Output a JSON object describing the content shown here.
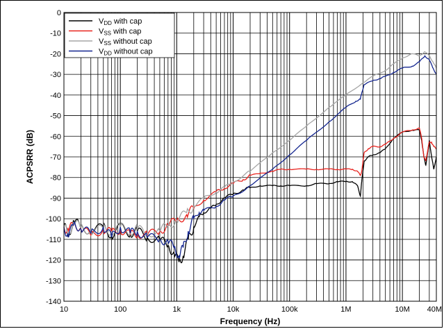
{
  "chart_data": {
    "type": "line",
    "title": "",
    "xlabel": "Frequency (Hz)",
    "ylabel": "ACPSRR (dB)",
    "xscale": "log",
    "xlim": [
      10,
      40000000
    ],
    "ylim": [
      -140,
      0
    ],
    "grid": true,
    "legend_position": "top-left",
    "x_ticks": [
      {
        "value": 10,
        "label": "10"
      },
      {
        "value": 100,
        "label": "100"
      },
      {
        "value": 1000,
        "label": "1k"
      },
      {
        "value": 10000,
        "label": "10k"
      },
      {
        "value": 100000,
        "label": "100k"
      },
      {
        "value": 1000000,
        "label": "1M"
      },
      {
        "value": 10000000,
        "label": "10M"
      },
      {
        "value": 40000000,
        "label": "40M"
      }
    ],
    "y_ticks": [
      0,
      -10,
      -20,
      -30,
      -40,
      -50,
      -60,
      -70,
      -80,
      -90,
      -100,
      -110,
      -120,
      -130,
      -140
    ],
    "series": [
      {
        "name_main": "V",
        "name_sub": "DD",
        "name_rest": " with cap",
        "color": "#000000",
        "points": [
          [
            10,
            -103
          ],
          [
            12,
            -108
          ],
          [
            15,
            -101
          ],
          [
            20,
            -104
          ],
          [
            30,
            -106
          ],
          [
            50,
            -104
          ],
          [
            70,
            -108
          ],
          [
            100,
            -104
          ],
          [
            150,
            -107
          ],
          [
            200,
            -106
          ],
          [
            300,
            -109
          ],
          [
            500,
            -110
          ],
          [
            700,
            -113
          ],
          [
            900,
            -117
          ],
          [
            1100,
            -121
          ],
          [
            1300,
            -118
          ],
          [
            1600,
            -110
          ],
          [
            2000,
            -104
          ],
          [
            2500,
            -99
          ],
          [
            3000,
            -97
          ],
          [
            4000,
            -95
          ],
          [
            5000,
            -93
          ],
          [
            7000,
            -90
          ],
          [
            10000,
            -88
          ],
          [
            15000,
            -86
          ],
          [
            20000,
            -85
          ],
          [
            30000,
            -84
          ],
          [
            50000,
            -84
          ],
          [
            70000,
            -84
          ],
          [
            100000,
            -84
          ],
          [
            200000,
            -84
          ],
          [
            300000,
            -83
          ],
          [
            500000,
            -83
          ],
          [
            700000,
            -82
          ],
          [
            1000000,
            -82
          ],
          [
            1300000,
            -82
          ],
          [
            1600000,
            -84
          ],
          [
            1800000,
            -89
          ],
          [
            1900000,
            -82
          ],
          [
            2100000,
            -72
          ],
          [
            2500000,
            -70
          ],
          [
            3000000,
            -69
          ],
          [
            4000000,
            -68
          ],
          [
            5000000,
            -66
          ],
          [
            7000000,
            -61
          ],
          [
            10000000,
            -58
          ],
          [
            15000000,
            -57
          ],
          [
            20000000,
            -57
          ],
          [
            22000000,
            -62
          ],
          [
            24000000,
            -70
          ],
          [
            26000000,
            -74
          ],
          [
            28000000,
            -68
          ],
          [
            30000000,
            -62
          ],
          [
            33000000,
            -70
          ],
          [
            36000000,
            -76
          ],
          [
            40000000,
            -70
          ]
        ]
      },
      {
        "name_main": "V",
        "name_sub": "SS",
        "name_rest": " with cap",
        "color": "#e8231e",
        "points": [
          [
            10,
            -104
          ],
          [
            12,
            -106
          ],
          [
            15,
            -102
          ],
          [
            20,
            -105
          ],
          [
            30,
            -108
          ],
          [
            50,
            -105
          ],
          [
            70,
            -107
          ],
          [
            100,
            -105
          ],
          [
            150,
            -108
          ],
          [
            200,
            -107
          ],
          [
            300,
            -108
          ],
          [
            500,
            -106
          ],
          [
            700,
            -103
          ],
          [
            1000,
            -101
          ],
          [
            1500,
            -98
          ],
          [
            2000,
            -95
          ],
          [
            3000,
            -91
          ],
          [
            5000,
            -87
          ],
          [
            7000,
            -85
          ],
          [
            10000,
            -83
          ],
          [
            15000,
            -81
          ],
          [
            20000,
            -79
          ],
          [
            30000,
            -78
          ],
          [
            50000,
            -77
          ],
          [
            70000,
            -76
          ],
          [
            100000,
            -76
          ],
          [
            200000,
            -76
          ],
          [
            300000,
            -76
          ],
          [
            500000,
            -76
          ],
          [
            700000,
            -76
          ],
          [
            1000000,
            -76
          ],
          [
            1300000,
            -76
          ],
          [
            1600000,
            -77
          ],
          [
            1800000,
            -79
          ],
          [
            1900000,
            -77
          ],
          [
            2100000,
            -68
          ],
          [
            2500000,
            -66
          ],
          [
            3000000,
            -65
          ],
          [
            4000000,
            -65
          ],
          [
            5000000,
            -64
          ],
          [
            7000000,
            -61
          ],
          [
            10000000,
            -58
          ],
          [
            15000000,
            -57
          ],
          [
            20000000,
            -56
          ],
          [
            22000000,
            -61
          ],
          [
            24000000,
            -70
          ],
          [
            26000000,
            -72
          ],
          [
            28000000,
            -67
          ],
          [
            30000000,
            -63
          ],
          [
            33000000,
            -63
          ],
          [
            36000000,
            -65
          ],
          [
            40000000,
            -66
          ]
        ]
      },
      {
        "name_main": "V",
        "name_sub": "SS",
        "name_rest": " without cap",
        "color": "#a6a6a6",
        "points": [
          [
            10,
            -104
          ],
          [
            12,
            -107
          ],
          [
            15,
            -102
          ],
          [
            20,
            -104
          ],
          [
            30,
            -106
          ],
          [
            50,
            -105
          ],
          [
            70,
            -106
          ],
          [
            100,
            -104
          ],
          [
            150,
            -106
          ],
          [
            200,
            -105
          ],
          [
            300,
            -107
          ],
          [
            500,
            -106
          ],
          [
            700,
            -103
          ],
          [
            1000,
            -101
          ],
          [
            1500,
            -97
          ],
          [
            2000,
            -94
          ],
          [
            3000,
            -90
          ],
          [
            5000,
            -87
          ],
          [
            7000,
            -85
          ],
          [
            10000,
            -82
          ],
          [
            20000,
            -77
          ],
          [
            50000,
            -68
          ],
          [
            100000,
            -62
          ],
          [
            200000,
            -55
          ],
          [
            500000,
            -46
          ],
          [
            1000000,
            -40
          ],
          [
            2000000,
            -34
          ],
          [
            3000000,
            -31
          ],
          [
            5000000,
            -28
          ],
          [
            7000000,
            -25
          ],
          [
            10000000,
            -22
          ],
          [
            15000000,
            -20
          ],
          [
            20000000,
            -21
          ],
          [
            25000000,
            -19
          ],
          [
            30000000,
            -21
          ],
          [
            35000000,
            -24
          ],
          [
            40000000,
            -27
          ]
        ]
      },
      {
        "name_main": "V",
        "name_sub": "DD",
        "name_rest": " without cap",
        "color": "#13258f",
        "points": [
          [
            10,
            -104
          ],
          [
            12,
            -109
          ],
          [
            15,
            -102
          ],
          [
            20,
            -105
          ],
          [
            30,
            -107
          ],
          [
            50,
            -104
          ],
          [
            70,
            -109
          ],
          [
            100,
            -104
          ],
          [
            150,
            -107
          ],
          [
            200,
            -106
          ],
          [
            300,
            -109
          ],
          [
            500,
            -110
          ],
          [
            700,
            -111
          ],
          [
            900,
            -114
          ],
          [
            1100,
            -118
          ],
          [
            1300,
            -114
          ],
          [
            1600,
            -106
          ],
          [
            2000,
            -100
          ],
          [
            2500,
            -97
          ],
          [
            3000,
            -96
          ],
          [
            5000,
            -94
          ],
          [
            7000,
            -91
          ],
          [
            10000,
            -89
          ],
          [
            20000,
            -84
          ],
          [
            50000,
            -76
          ],
          [
            100000,
            -69
          ],
          [
            200000,
            -62
          ],
          [
            500000,
            -53
          ],
          [
            1000000,
            -46
          ],
          [
            1500000,
            -43
          ],
          [
            1800000,
            -42
          ],
          [
            1900000,
            -39
          ],
          [
            2100000,
            -35
          ],
          [
            3000000,
            -33
          ],
          [
            4000000,
            -32
          ],
          [
            5000000,
            -31
          ],
          [
            7000000,
            -29
          ],
          [
            10000000,
            -27
          ],
          [
            15000000,
            -26
          ],
          [
            20000000,
            -24
          ],
          [
            25000000,
            -21
          ],
          [
            30000000,
            -23
          ],
          [
            35000000,
            -27
          ],
          [
            40000000,
            -30
          ]
        ]
      }
    ]
  }
}
